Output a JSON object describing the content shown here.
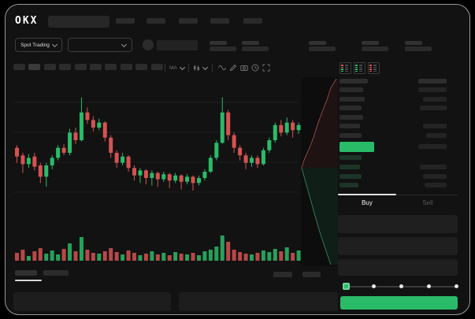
{
  "brand": {
    "logo_text": "OKX"
  },
  "header": {
    "market_selector_label": "Spot Trading"
  },
  "chart_toolbar": {
    "indicator_label": "MA"
  },
  "order_panel": {
    "buy_tab_label": "Buy",
    "sell_tab_label": "Sell"
  },
  "slider": {
    "value_percent": 0,
    "stops_percent": [
      0,
      25,
      50,
      75,
      100
    ]
  },
  "icons": {
    "orderbook_modes": [
      "book-combined-icon",
      "book-bids-icon",
      "book-asks-icon"
    ],
    "toolbar_icons": [
      "wave-line-icon",
      "pencil-icon",
      "camera-icon",
      "clock-icon",
      "fullscreen-icon"
    ],
    "chevrons": "chevron-down"
  },
  "colors": {
    "up_green": "#2abb69",
    "down_red": "#d65252",
    "last_price_green": "#2abb69",
    "bid_row_tint": "#1c3527",
    "grid_line": "#1e1e1e",
    "depth_ask_line": "#a85555",
    "depth_bid_line": "#3d8e63",
    "depth_bg": "#0d0d0d"
  },
  "chart_data": {
    "type": "candlestick",
    "price_scale": {
      "min": 0,
      "max": 110
    },
    "gridline_count": 4,
    "candles": [
      [
        64,
        66,
        52,
        57
      ],
      [
        58,
        60,
        44,
        51
      ],
      [
        51,
        59,
        48,
        56
      ],
      [
        57,
        60,
        46,
        49
      ],
      [
        50,
        52,
        36,
        41
      ],
      [
        41,
        52,
        33,
        50
      ],
      [
        50,
        58,
        47,
        56
      ],
      [
        56,
        66,
        54,
        64
      ],
      [
        64,
        67,
        58,
        60
      ],
      [
        60,
        79,
        58,
        76
      ],
      [
        76,
        80,
        67,
        70
      ],
      [
        70,
        104,
        69,
        92
      ],
      [
        92,
        96,
        83,
        86
      ],
      [
        86,
        89,
        77,
        80
      ],
      [
        80,
        87,
        78,
        84
      ],
      [
        84,
        85,
        69,
        72
      ],
      [
        72,
        74,
        56,
        60
      ],
      [
        60,
        62,
        48,
        52
      ],
      [
        52,
        60,
        50,
        57
      ],
      [
        57,
        58,
        45,
        48
      ],
      [
        48,
        50,
        38,
        42
      ],
      [
        42,
        48,
        36,
        46
      ],
      [
        46,
        47,
        35,
        40
      ],
      [
        40,
        46,
        34,
        44
      ],
      [
        44,
        45,
        33,
        39
      ],
      [
        39,
        45,
        37,
        43
      ],
      [
        43,
        44,
        32,
        38
      ],
      [
        38,
        44,
        36,
        42
      ],
      [
        42,
        43,
        31,
        37
      ],
      [
        37,
        43,
        35,
        41
      ],
      [
        41,
        42,
        30,
        36
      ],
      [
        36,
        42,
        34,
        40
      ],
      [
        40,
        47,
        38,
        45
      ],
      [
        45,
        58,
        44,
        56
      ],
      [
        56,
        70,
        54,
        68
      ],
      [
        68,
        104,
        67,
        92
      ],
      [
        92,
        94,
        70,
        74
      ],
      [
        74,
        76,
        60,
        64
      ],
      [
        64,
        66,
        54,
        58
      ],
      [
        58,
        60,
        47,
        52
      ],
      [
        52,
        58,
        49,
        56
      ],
      [
        56,
        58,
        48,
        51
      ],
      [
        51,
        64,
        50,
        62
      ],
      [
        62,
        72,
        60,
        70
      ],
      [
        70,
        84,
        68,
        82
      ],
      [
        82,
        86,
        73,
        76
      ],
      [
        76,
        88,
        74,
        84
      ],
      [
        84,
        86,
        72,
        78
      ],
      [
        78,
        84,
        75,
        82
      ]
    ],
    "volume": [
      10,
      14,
      6,
      12,
      16,
      9,
      13,
      8,
      15,
      22,
      12,
      30,
      14,
      10,
      9,
      12,
      16,
      11,
      8,
      13,
      10,
      7,
      9,
      12,
      8,
      10,
      7,
      11,
      9,
      8,
      10,
      7,
      12,
      14,
      18,
      32,
      24,
      14,
      11,
      9,
      8,
      10,
      13,
      11,
      15,
      12,
      17,
      10,
      13
    ],
    "depth": {
      "asks": [
        [
          1.0,
          2
        ],
        [
          0.84,
          14
        ],
        [
          0.74,
          28
        ],
        [
          0.6,
          44
        ],
        [
          0.47,
          60
        ],
        [
          0.36,
          76
        ],
        [
          0.24,
          90
        ],
        [
          0.1,
          104
        ],
        [
          0.02,
          115
        ]
      ],
      "bids": [
        [
          0.02,
          115
        ],
        [
          0.1,
          128
        ],
        [
          0.2,
          144
        ],
        [
          0.3,
          160
        ],
        [
          0.4,
          176
        ],
        [
          0.5,
          192
        ],
        [
          0.6,
          206
        ],
        [
          0.72,
          222
        ],
        [
          0.84,
          238
        ]
      ]
    }
  }
}
